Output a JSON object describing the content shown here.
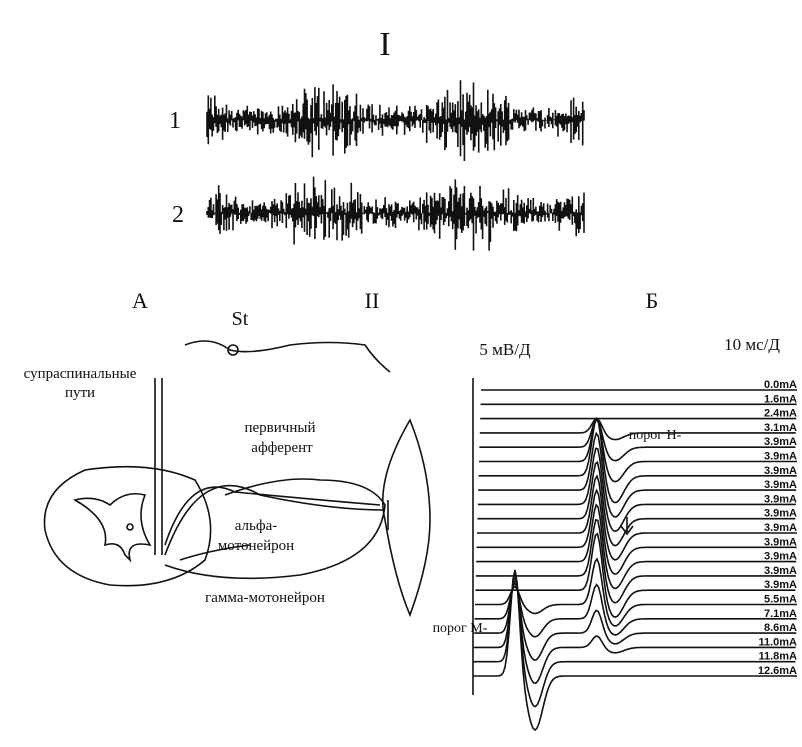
{
  "part_1": {
    "title": "I",
    "trace_labels": [
      "1",
      "2"
    ]
  },
  "part_2": {
    "title": "II",
    "diagram": {
      "panel": "А",
      "stimulus": "St",
      "labels": [
        [
          "супраспинальные",
          "пути"
        ],
        [
          "первичный",
          "афферент"
        ],
        [
          "альфа-",
          "мотонейрон"
        ],
        [
          "гамма-мотонейрон"
        ]
      ]
    },
    "recording": {
      "panel": "Б",
      "amplitude_scale": "5 мВ/Д",
      "time_scale": "10 мс/Д",
      "h_threshold": "порог Н-",
      "m_threshold": "порог М-",
      "currents": [
        "0.0mA",
        "1.6mA",
        "2.4mA",
        "3.1mA",
        "3.9mA",
        "3.9mA",
        "3.9mA",
        "3.9mA",
        "3.9mA",
        "3.9mA",
        "3.9mA",
        "3.9mA",
        "3.9mA",
        "3.9mA",
        "3.9mA",
        "5.5mA",
        "7.1mA",
        "8.6mA",
        "11.0mA",
        "11.8mA",
        "12.6mA"
      ]
    }
  }
}
